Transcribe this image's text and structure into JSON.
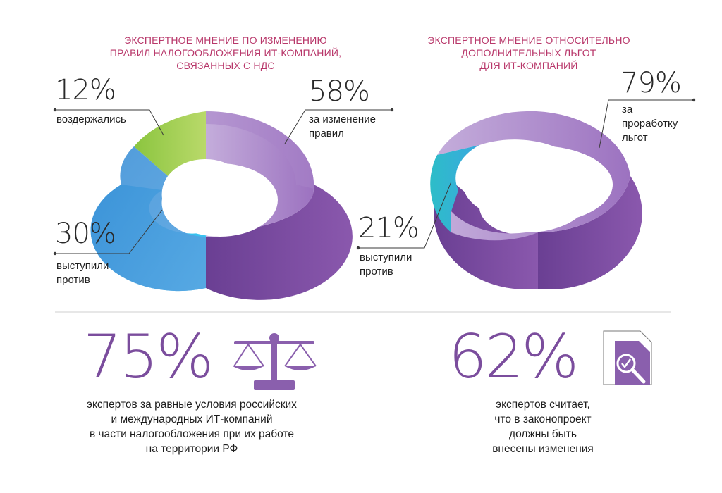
{
  "chart_data": [
    {
      "type": "pie",
      "title": "ЭКСПЕРТНОЕ МНЕНИЕ ПО ИЗМЕНЕНИЮ ПРАВИЛ НАЛОГООБЛОЖЕНИЯ ИТ-КОМПАНИЙ, СВЯЗАННЫХ С НДС",
      "title_lines": [
        "ЭКСПЕРТНОЕ МНЕНИЕ ПО ИЗМЕНЕНИЮ",
        "ПРАВИЛ НАЛОГООБЛОЖЕНИЯ ИТ-КОМПАНИЙ,",
        "СВЯЗАННЫХ С НДС"
      ],
      "slices": [
        {
          "label_lines": [
            "за изменение",
            "правил"
          ],
          "pct_text": "58%",
          "value": 58,
          "color": "#8d5bb2"
        },
        {
          "label_lines": [
            "воздержались"
          ],
          "pct_text": "12%",
          "value": 12,
          "color": "#9cc93b"
        },
        {
          "label_lines": [
            "выступили",
            "против"
          ],
          "pct_text": "30%",
          "value": 30,
          "color": "#2fa6dc"
        }
      ]
    },
    {
      "type": "pie",
      "title": "ЭКСПЕРТНОЕ МНЕНИЕ ОТНОСИТЕЛЬНО ДОПОЛНИТЕЛЬНЫХ ЛЬГОТ ДЛЯ ИТ-КОМПАНИЙ",
      "title_lines": [
        "ЭКСПЕРТНОЕ МНЕНИЕ ОТНОСИТЕЛЬНО",
        "ДОПОЛНИТЕЛЬНЫХ ЛЬГОТ",
        "ДЛЯ ИТ-КОМПАНИЙ"
      ],
      "slices": [
        {
          "label_lines": [
            "за",
            "проработку",
            "льгот"
          ],
          "pct_text": "79%",
          "value": 79,
          "color": "#8d5bb2"
        },
        {
          "label_lines": [
            "выступили",
            "против"
          ],
          "pct_text": "21%",
          "value": 21,
          "color": "#33b4d8"
        }
      ]
    }
  ],
  "stats": [
    {
      "value_text": "75%",
      "value": 75,
      "icon": "scales-icon",
      "desc_lines": [
        "экспертов за равные условия российских",
        "и международных ИТ-компаний",
        "в части налогообложения при их работе",
        "на территории РФ"
      ]
    },
    {
      "value_text": "62%",
      "value": 62,
      "icon": "document-magnifier-icon",
      "desc_lines": [
        "экспертов считает,",
        "что в законопроект",
        "должны быть",
        "внесены изменения"
      ]
    }
  ],
  "colors": {
    "accent": "#7b4d9d",
    "title": "#b8376a",
    "green": "#9cc93b",
    "blue": "#2fa6dc",
    "cyan": "#33c0cf"
  }
}
